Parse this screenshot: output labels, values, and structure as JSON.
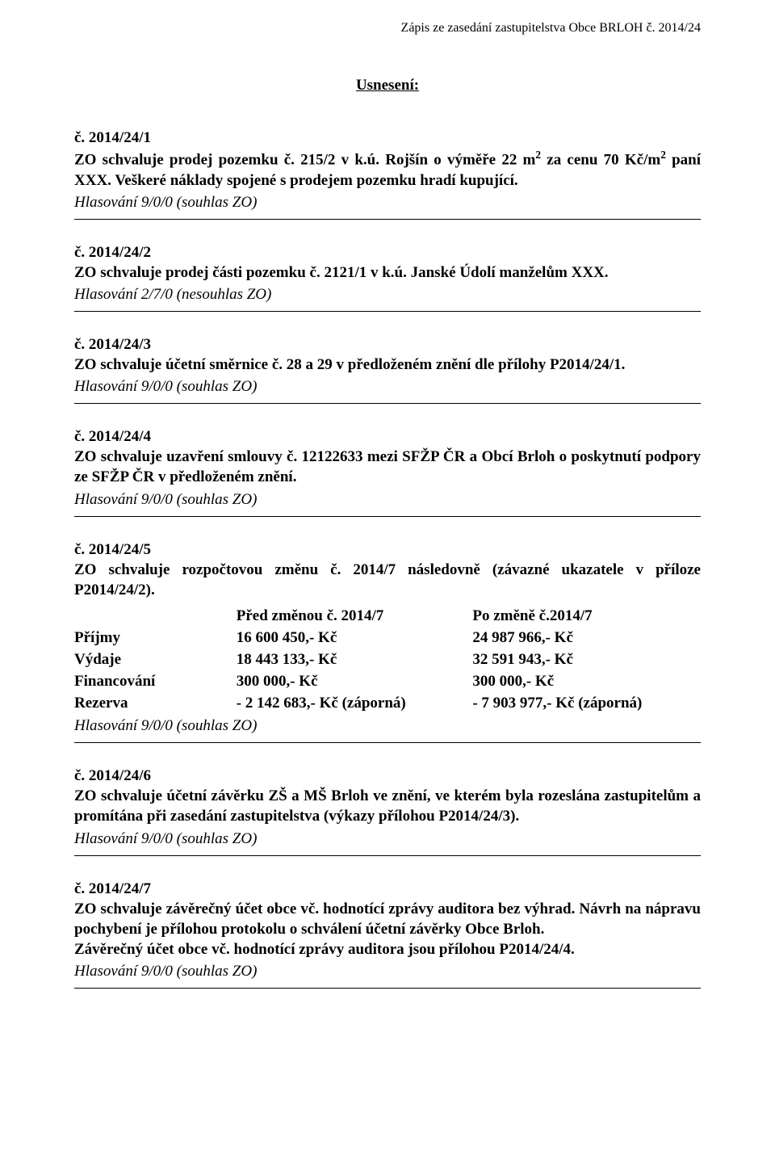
{
  "header": "Zápis ze zasedání zastupitelstva Obce BRLOH č. 2014/24",
  "title": "Usnesení:",
  "r1": {
    "num": "č. 2014/24/1",
    "l1": "ZO schvaluje prodej pozemku č. 215/2 v k.ú. Rojšín o výměře 22 m",
    "sup1": "2",
    "l2": " za cenu 70 Kč/m",
    "sup2": "2",
    "l3": " paní XXX. Veškeré náklady spojené s prodejem pozemku hradí kupující.",
    "vote": "Hlasování 9/0/0 (souhlas ZO)"
  },
  "r2": {
    "num": "č. 2014/24/2",
    "body": "ZO schvaluje prodej části pozemku č. 2121/1 v k.ú. Janské Údolí manželům XXX.",
    "vote": "Hlasování 2/7/0 (nesouhlas ZO)"
  },
  "r3": {
    "num": "č. 2014/24/3",
    "body": "ZO schvaluje účetní směrnice č. 28 a 29 v předloženém znění dle přílohy P2014/24/1.",
    "vote": "Hlasování 9/0/0 (souhlas ZO)"
  },
  "r4": {
    "num": "č. 2014/24/4",
    "body": "ZO schvaluje uzavření smlouvy č. 12122633 mezi SFŽP ČR a Obcí Brloh o poskytnutí podpory ze SFŽP ČR v předloženém znění.",
    "vote": "Hlasování 9/0/0 (souhlas ZO)"
  },
  "r5": {
    "num": "č. 2014/24/5",
    "intro": "ZO schvaluje rozpočtovou změnu č. 2014/7 následovně (závazné ukazatele v příloze P2014/24/2).",
    "vote": "Hlasování 9/0/0 (souhlas ZO)",
    "table": {
      "h0": "",
      "h1": "Před změnou č. 2014/7",
      "h2": "Po změně č.2014/7",
      "rows": [
        {
          "c0": "Příjmy",
          "c1": "16 600 450,- Kč",
          "c2": "24 987 966,- Kč"
        },
        {
          "c0": "Výdaje",
          "c1": "18 443 133,- Kč",
          "c2": "32 591 943,- Kč"
        },
        {
          "c0": "Financování",
          "c1": "     300 000,- Kč",
          "c2": "     300 000,- Kč"
        },
        {
          "c0": "Rezerva",
          "c1": "- 2 142 683,- Kč (záporná)",
          "c2": "- 7 903 977,- Kč (záporná)"
        }
      ]
    }
  },
  "r6": {
    "num": "č. 2014/24/6",
    "body": "ZO schvaluje účetní závěrku ZŠ a MŠ Brloh ve znění, ve kterém byla rozeslána zastupitelům a promítána při zasedání zastupitelstva (výkazy přílohou P2014/24/3).",
    "vote": "Hlasování 9/0/0 (souhlas ZO)"
  },
  "r7": {
    "num": "č. 2014/24/7",
    "body": "ZO schvaluje závěrečný účet obce vč. hodnotící zprávy auditora bez výhrad. Návrh na nápravu pochybení je přílohou protokolu o schválení účetní závěrky Obce Brloh.",
    "extra": "Závěrečný účet obce vč. hodnotící zprávy auditora jsou přílohou P2014/24/4.",
    "vote": "Hlasování 9/0/0 (souhlas ZO)"
  }
}
